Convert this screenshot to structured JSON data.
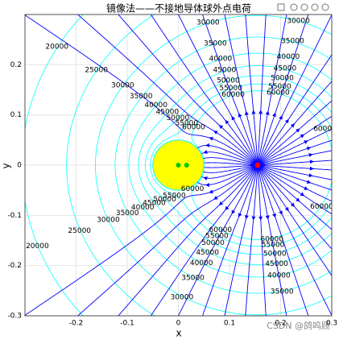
{
  "chart_data": {
    "type": "field",
    "title": "镜像法——不接地导体球外点电荷",
    "xlabel": "x",
    "ylabel": "y",
    "xlim": [
      -0.3,
      0.3
    ],
    "ylim": [
      -0.3,
      0.3
    ],
    "xticks": [
      -0.2,
      -0.1,
      0,
      0.1,
      0.2,
      0.3
    ],
    "yticks": [
      -0.3,
      -0.2,
      -0.1,
      0,
      0.1,
      0.2
    ],
    "grid": true,
    "charge": {
      "x": 0.155,
      "y": 0,
      "kq": 9000,
      "color": "#ff0000"
    },
    "sphere": {
      "radius": 0.05,
      "color": "#ffff00",
      "image_color": "#00cc00"
    },
    "field_lines": 48,
    "field_color": "#0000ff",
    "contour_levels": [
      20000,
      25000,
      30000,
      35000,
      40000,
      45000,
      50000,
      55000,
      60000
    ],
    "contour_color": "#00ffff",
    "watermark": "CSDN @鸽呜顾"
  }
}
